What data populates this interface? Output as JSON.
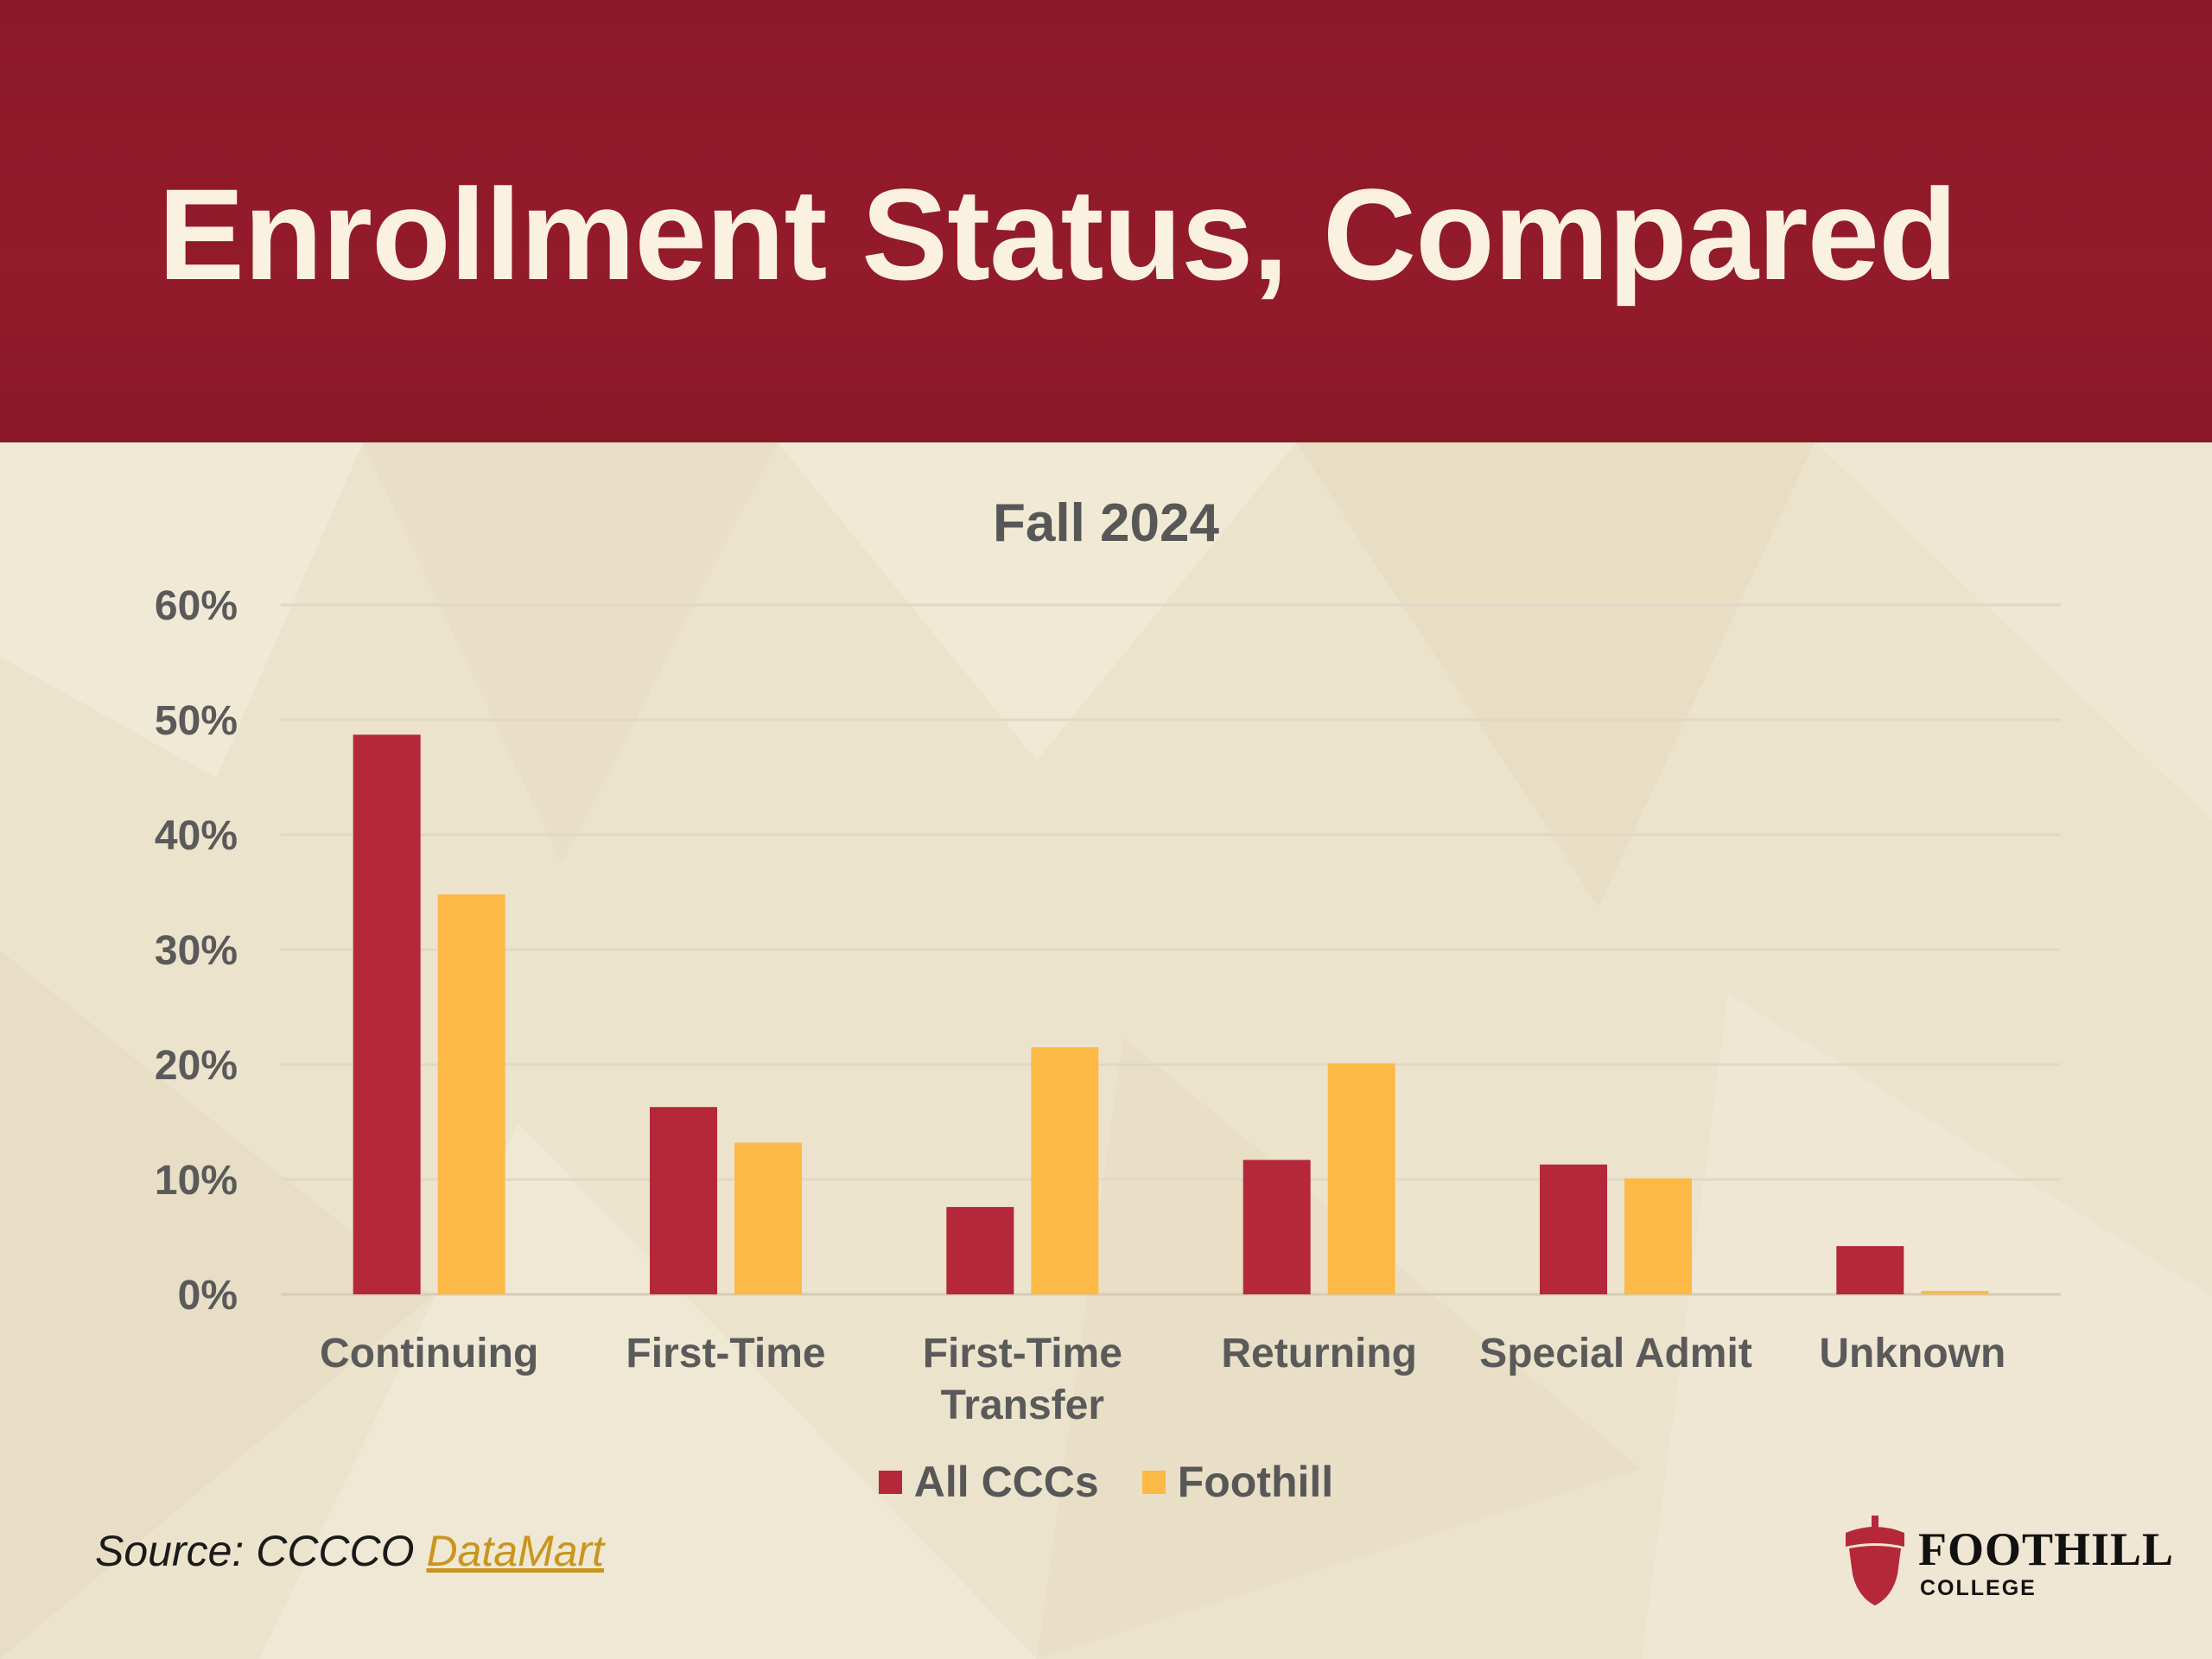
{
  "slide": {
    "title": "Enrollment Status, Compared",
    "source_label": "Source: CCCCO ",
    "source_link": "DataMart",
    "logo": {
      "main": "FOOTHILL",
      "sub": "COLLEGE"
    },
    "colors": {
      "header": "#931b2a",
      "background": "#ece3cc"
    }
  },
  "chart_data": {
    "type": "bar",
    "title": "Fall 2024",
    "categories": [
      "Continuing",
      "First-Time",
      "First-Time Transfer",
      "Returning",
      "Special Admit",
      "Unknown"
    ],
    "category_lines": [
      [
        "Continuing"
      ],
      [
        "First-Time"
      ],
      [
        "First-Time",
        "Transfer"
      ],
      [
        "Returning"
      ],
      [
        "Special Admit"
      ],
      [
        "Unknown"
      ]
    ],
    "series": [
      {
        "name": "All CCCs",
        "color": "#b5283a",
        "values": [
          48.7,
          16.3,
          7.6,
          11.7,
          11.3,
          4.2
        ]
      },
      {
        "name": "Foothill",
        "color": "#fdb946",
        "values": [
          34.8,
          13.2,
          21.5,
          20.1,
          10.1,
          0.3
        ]
      }
    ],
    "ylim": [
      0,
      60
    ],
    "yticks": [
      "0%",
      "10%",
      "20%",
      "30%",
      "40%",
      "50%",
      "60%"
    ],
    "grid": true,
    "legend_position": "bottom"
  }
}
